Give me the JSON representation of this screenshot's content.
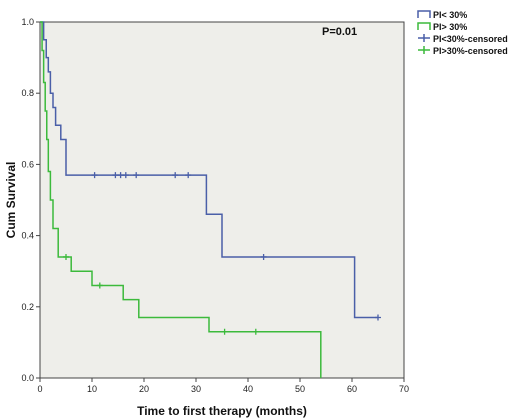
{
  "chart_data": {
    "type": "line",
    "step": true,
    "title": "",
    "xlabel": "Time to first therapy (months)",
    "ylabel": "Cum Survival",
    "xlim": [
      0,
      70
    ],
    "ylim": [
      0,
      1.0
    ],
    "xticks": [
      "0",
      "10",
      "20",
      "30",
      "40",
      "50",
      "60",
      "70"
    ],
    "yticks": [
      "0.0",
      "0.2",
      "0.4",
      "0.6",
      "0.8",
      "1.0"
    ],
    "grid": false,
    "background": "#eeeeea",
    "legend_position": "outside-right",
    "annotation": "P=0.01",
    "legend": [
      {
        "label": "PI< 30%",
        "color": "#4a5fa8",
        "marker": "box"
      },
      {
        "label": "PI> 30%",
        "color": "#3cba3c",
        "marker": "box"
      },
      {
        "label": "PI<30%-censored",
        "color": "#4a5fa8",
        "marker": "plus"
      },
      {
        "label": "PI>30%-censored",
        "color": "#3cba3c",
        "marker": "plus"
      }
    ],
    "series": [
      {
        "name": "PI< 30%",
        "color": "#4a5fa8",
        "x": [
          0,
          0.7,
          1.2,
          1.6,
          2.0,
          2.5,
          3.0,
          4.0,
          5.0,
          32.0,
          35.0,
          60.5,
          65.0
        ],
        "y": [
          1.0,
          0.95,
          0.9,
          0.86,
          0.8,
          0.76,
          0.71,
          0.67,
          0.57,
          0.46,
          0.34,
          0.17,
          0.17
        ],
        "censored": [
          {
            "x": 10.5,
            "y": 0.57
          },
          {
            "x": 14.5,
            "y": 0.57
          },
          {
            "x": 15.5,
            "y": 0.57
          },
          {
            "x": 16.5,
            "y": 0.57
          },
          {
            "x": 18.5,
            "y": 0.57
          },
          {
            "x": 26.0,
            "y": 0.57
          },
          {
            "x": 28.5,
            "y": 0.57
          },
          {
            "x": 43.0,
            "y": 0.34
          },
          {
            "x": 65.0,
            "y": 0.17
          }
        ]
      },
      {
        "name": "PI> 30%",
        "color": "#3cba3c",
        "x": [
          0,
          0.4,
          0.7,
          1.0,
          1.3,
          1.6,
          2.0,
          2.5,
          3.5,
          6.0,
          10.0,
          16.0,
          19.0,
          32.5,
          54.0
        ],
        "y": [
          1.0,
          0.92,
          0.83,
          0.75,
          0.67,
          0.58,
          0.5,
          0.42,
          0.34,
          0.3,
          0.26,
          0.22,
          0.17,
          0.13,
          0.0
        ],
        "censored": [
          {
            "x": 5.0,
            "y": 0.34
          },
          {
            "x": 11.5,
            "y": 0.26
          },
          {
            "x": 35.5,
            "y": 0.13
          },
          {
            "x": 41.5,
            "y": 0.13
          }
        ]
      }
    ]
  }
}
